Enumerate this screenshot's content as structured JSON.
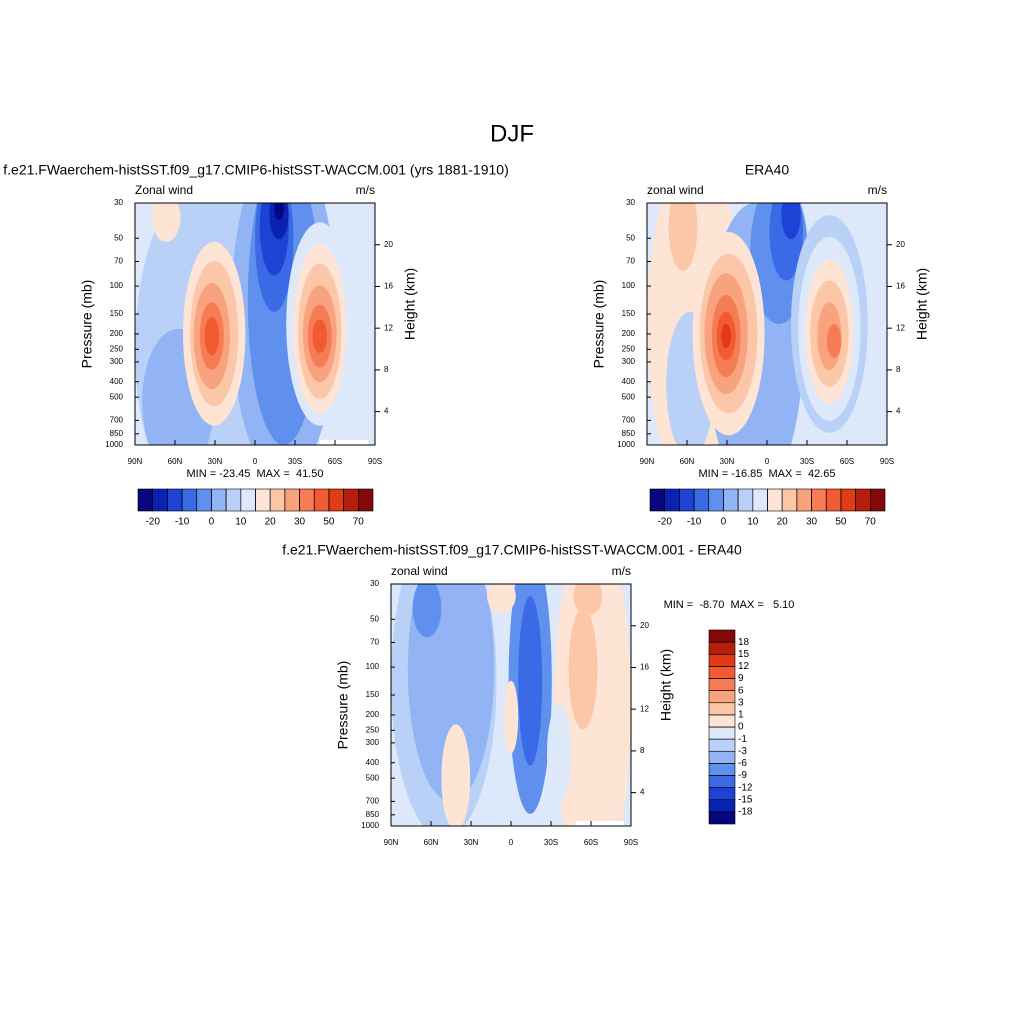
{
  "title": "DJF",
  "chart_data": [
    {
      "type": "contour",
      "title": "f.e21.FWaerchem-histSST.f09_g17.CMIP6-histSST-WACCM.001 (yrs 1881-1910)",
      "left_label": "Zonal wind",
      "right_label": "m/s",
      "ylabel": "Pressure (mb)",
      "y2label": "Height (km)",
      "log_y": true,
      "ylim": [
        1000,
        30
      ],
      "yticks": [
        30,
        50,
        70,
        100,
        150,
        200,
        250,
        300,
        400,
        500,
        700,
        850,
        1000
      ],
      "y2lim": [
        0.8,
        24
      ],
      "y2ticks": [
        4,
        8,
        12,
        16,
        20
      ],
      "xlim": [
        90,
        -90
      ],
      "xticks": [
        {
          "value": 90,
          "label": "90N"
        },
        {
          "value": 60,
          "label": "60N"
        },
        {
          "value": 30,
          "label": "30N"
        },
        0,
        {
          "value": -30,
          "label": "30S"
        },
        {
          "value": -60,
          "label": "60S"
        },
        {
          "value": -90,
          "label": "90S"
        }
      ],
      "stats_label": "MIN = -23.45  MAX =  41.50",
      "colorbar": {
        "orientation": "horizontal",
        "levels": [
          -20,
          {
            "value": -15,
            "label": null
          },
          -10,
          {
            "value": -5,
            "label": null
          },
          0,
          {
            "value": 5,
            "label": null
          },
          10,
          {
            "value": 15,
            "label": null
          },
          20,
          {
            "value": 25,
            "label": null
          },
          30,
          {
            "value": 40,
            "label": null
          },
          50,
          {
            "value": 60,
            "label": null
          },
          70
        ],
        "colors": [
          "#06067e",
          "#0a22b0",
          "#1c42d6",
          "#3a6ae6",
          "#6090ee",
          "#92b4f4",
          "#b9d1f7",
          "#dde9fb",
          "#fde4d4",
          "#fcc6a8",
          "#f9a27e",
          "#f67c56",
          "#f25a32",
          "#e03a16",
          "#b41e0c",
          "#840808"
        ]
      }
    },
    {
      "type": "contour",
      "title": "ERA40",
      "left_label": "zonal wind",
      "right_label": "m/s",
      "ylabel": "Pressure (mb)",
      "y2label": "Height (km)",
      "log_y": true,
      "ylim": [
        1000,
        30
      ],
      "yticks": [
        30,
        50,
        70,
        100,
        150,
        200,
        250,
        300,
        400,
        500,
        700,
        850,
        1000
      ],
      "y2lim": [
        0.8,
        24
      ],
      "y2ticks": [
        4,
        8,
        12,
        16,
        20
      ],
      "xlim": [
        90,
        -90
      ],
      "xticks": [
        {
          "value": 90,
          "label": "90N"
        },
        {
          "value": 60,
          "label": "60N"
        },
        {
          "value": 30,
          "label": "30N"
        },
        0,
        {
          "value": -30,
          "label": "30S"
        },
        {
          "value": -60,
          "label": "60S"
        },
        {
          "value": -90,
          "label": "90S"
        }
      ],
      "stats_label": "MIN = -16.85  MAX =  42.65",
      "colorbar": {
        "orientation": "horizontal",
        "levels": [
          -20,
          {
            "value": -15,
            "label": null
          },
          -10,
          {
            "value": -5,
            "label": null
          },
          0,
          {
            "value": 5,
            "label": null
          },
          10,
          {
            "value": 15,
            "label": null
          },
          20,
          {
            "value": 25,
            "label": null
          },
          30,
          {
            "value": 40,
            "label": null
          },
          50,
          {
            "value": 60,
            "label": null
          },
          70
        ],
        "colors": [
          "#06067e",
          "#0a22b0",
          "#1c42d6",
          "#3a6ae6",
          "#6090ee",
          "#92b4f4",
          "#b9d1f7",
          "#dde9fb",
          "#fde4d4",
          "#fcc6a8",
          "#f9a27e",
          "#f67c56",
          "#f25a32",
          "#e03a16",
          "#b41e0c",
          "#840808"
        ]
      }
    },
    {
      "type": "contour",
      "title": "f.e21.FWaerchem-histSST.f09_g17.CMIP6-histSST-WACCM.001 - ERA40",
      "left_label": "zonal wind",
      "right_label": "m/s",
      "ylabel": "Pressure (mb)",
      "y2label": "Height (km)",
      "log_y": true,
      "ylim": [
        1000,
        30
      ],
      "yticks": [
        30,
        50,
        70,
        100,
        150,
        200,
        250,
        300,
        400,
        500,
        700,
        850,
        1000
      ],
      "y2lim": [
        0.8,
        24
      ],
      "y2ticks": [
        4,
        8,
        12,
        16,
        20
      ],
      "xlim": [
        90,
        -90
      ],
      "xticks": [
        {
          "value": 90,
          "label": "90N"
        },
        {
          "value": 60,
          "label": "60N"
        },
        {
          "value": 30,
          "label": "30N"
        },
        0,
        {
          "value": -30,
          "label": "30S"
        },
        {
          "value": -60,
          "label": "60S"
        },
        {
          "value": -90,
          "label": "90S"
        }
      ],
      "stats_label": "MIN =  -8.70  MAX =   5.10",
      "colorbar": {
        "orientation": "vertical",
        "levels": [
          -18,
          -15,
          -12,
          -9,
          -6,
          -3,
          -1,
          0,
          1,
          3,
          6,
          9,
          12,
          15,
          18
        ],
        "colors": [
          "#06067e",
          "#0a22b0",
          "#1c42d6",
          "#3a6ae6",
          "#6090ee",
          "#92b4f4",
          "#b9d1f7",
          "#dde9fb",
          "#fde4d4",
          "#fcc6a8",
          "#f9a27e",
          "#f67c56",
          "#f25a32",
          "#e03a16",
          "#b41e0c",
          "#840808"
        ]
      }
    }
  ]
}
